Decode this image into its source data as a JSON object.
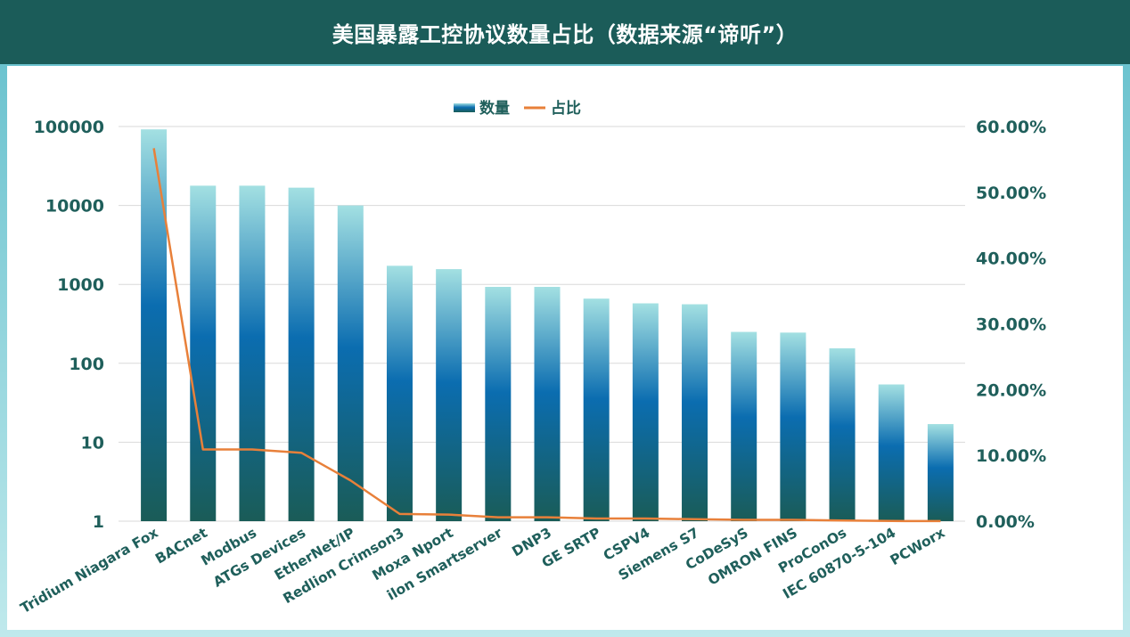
{
  "title": "美国暴露工控协议数量占比（数据来源“谛听”）",
  "chart_data": {
    "type": "bar",
    "title": "美国暴露工控协议数量占比（数据来源“谛听”）",
    "categories": [
      "Tridium Niagara Fox",
      "BACnet",
      "Modbus",
      "ATGs Devices",
      "EtherNet/IP",
      "Redlion Crimson3",
      "Moxa Nport",
      "ilon Smartserver",
      "DNP3",
      "GE SRTP",
      "CSPV4",
      "Siemens S7",
      "CoDeSyS",
      "OMRON FINS",
      "ProConOs",
      "IEC 60870-5-104",
      "PCWorx"
    ],
    "series": [
      {
        "name": "数量",
        "type": "bar",
        "axis": "left",
        "values": [
          92000,
          17800,
          17800,
          16800,
          10000,
          1720,
          1560,
          930,
          930,
          660,
          575,
          560,
          250,
          245,
          155,
          54,
          17
        ]
      },
      {
        "name": "占比",
        "type": "line",
        "axis": "right",
        "values": [
          56.7,
          10.9,
          10.9,
          10.4,
          6.2,
          1.1,
          1.0,
          0.6,
          0.6,
          0.4,
          0.4,
          0.3,
          0.2,
          0.2,
          0.1,
          0.03,
          0.01
        ]
      }
    ],
    "y_left": {
      "scale": "log",
      "range": [
        1,
        100000
      ],
      "ticks": [
        "1",
        "10",
        "100",
        "1000",
        "10000",
        "100000"
      ]
    },
    "y_right": {
      "scale": "linear",
      "range": [
        0,
        60
      ],
      "ticks": [
        "0.00%",
        "10.00%",
        "20.00%",
        "30.00%",
        "40.00%",
        "50.00%",
        "60.00%"
      ]
    },
    "grid": true,
    "legend": {
      "position": "top",
      "entries": [
        "数量",
        "占比"
      ]
    },
    "colors": {
      "bar_top": "#9fdde0",
      "bar_mid": "#0a6db0",
      "bar_bottom": "#1a5c57",
      "line": "#e8803a",
      "grid": "#d9d9d9",
      "text": "#1f5f5b"
    }
  }
}
